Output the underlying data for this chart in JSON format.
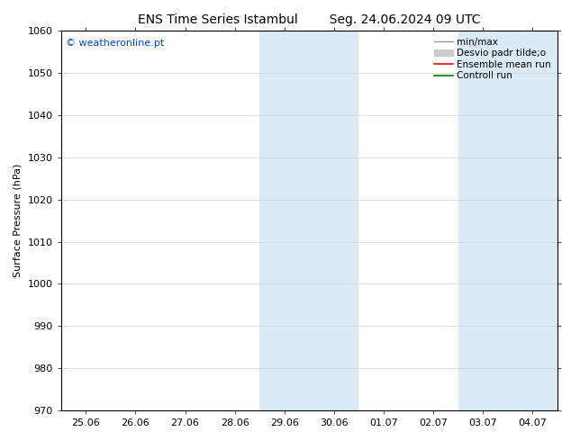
{
  "title_left": "ENS Time Series Istambul",
  "title_right": "Seg. 24.06.2024 09 UTC",
  "ylabel": "Surface Pressure (hPa)",
  "ylim": [
    970,
    1060
  ],
  "yticks": [
    970,
    980,
    990,
    1000,
    1010,
    1020,
    1030,
    1040,
    1050,
    1060
  ],
  "xtick_labels": [
    "25.06",
    "26.06",
    "27.06",
    "28.06",
    "29.06",
    "30.06",
    "01.07",
    "02.07",
    "03.07",
    "04.07"
  ],
  "xtick_positions": [
    0,
    1,
    2,
    3,
    4,
    5,
    6,
    7,
    8,
    9
  ],
  "xlim": [
    -0.5,
    9.5
  ],
  "shaded_bands": [
    {
      "x_start": 3.5,
      "x_end": 5.5,
      "color": "#daeaf7"
    },
    {
      "x_start": 7.5,
      "x_end": 9.5,
      "color": "#daeaf7"
    }
  ],
  "copyright_text": "© weatheronline.pt",
  "copyright_color": "#0044cc",
  "bg_color": "#ffffff",
  "grid_color": "#cccccc",
  "tick_label_fontsize": 8,
  "axis_label_fontsize": 8,
  "title_fontsize": 10,
  "legend_fontsize": 7.5
}
